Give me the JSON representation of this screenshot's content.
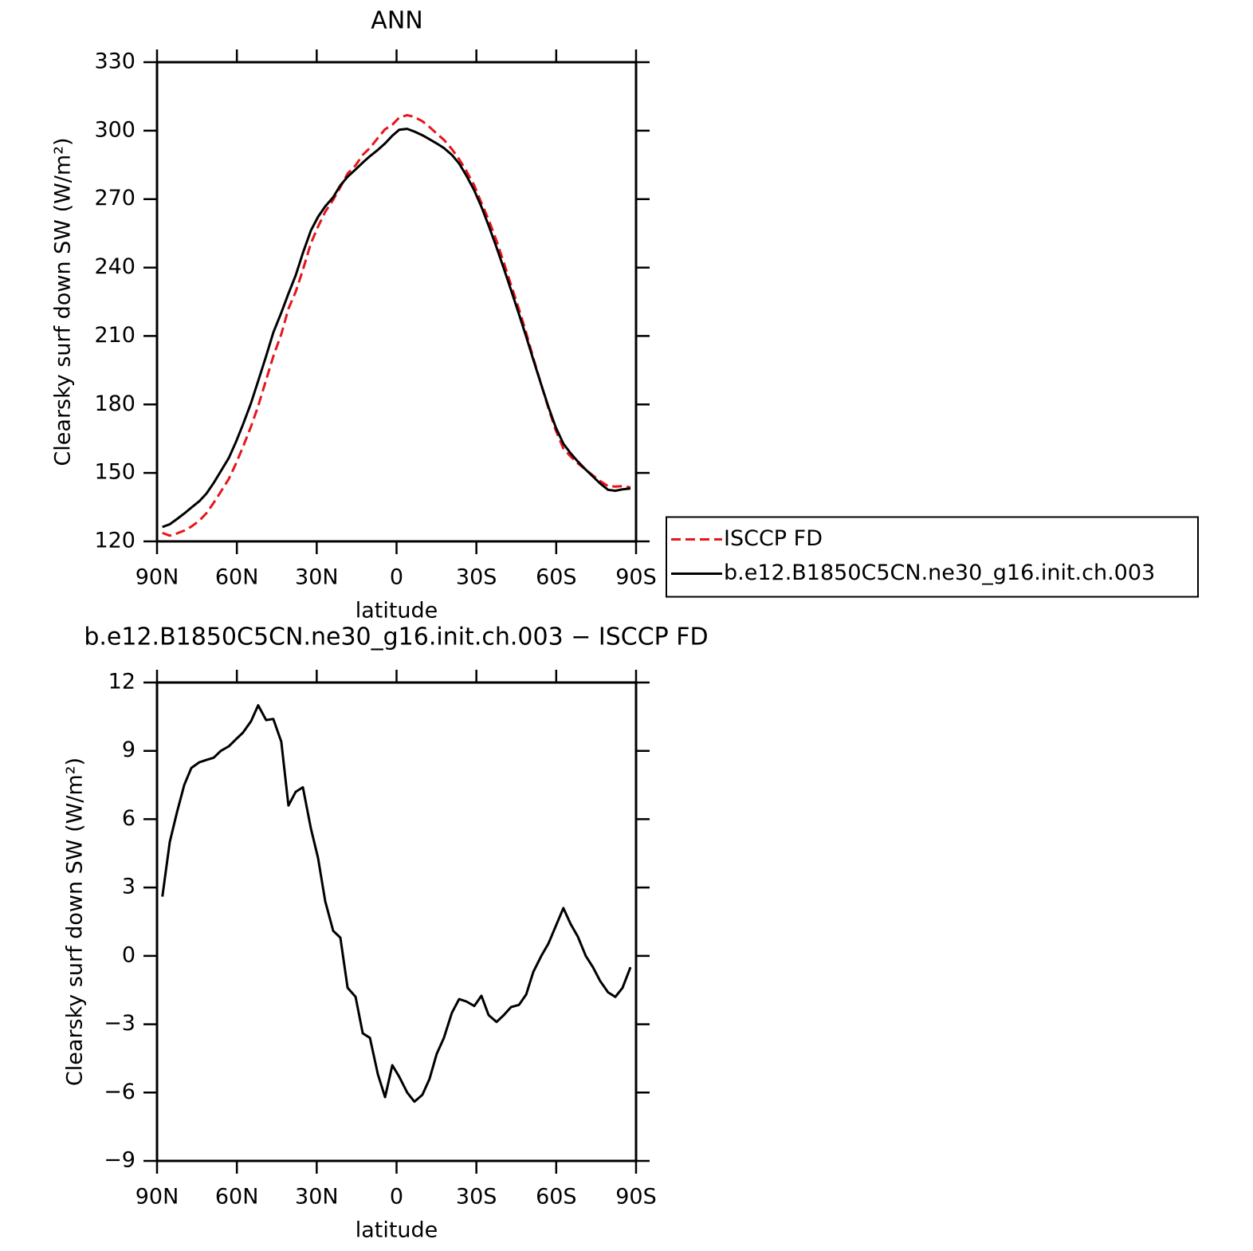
{
  "chart_data": [
    {
      "type": "line",
      "title": "ANN",
      "xlabel": "latitude",
      "ylabel": "Clearsky surf down SW (W/m²)",
      "x": [
        88,
        85.2,
        82.5,
        79.8,
        77.1,
        74.1,
        71.4,
        68.7,
        66.0,
        63.0,
        60.4,
        57.7,
        54.7,
        52.0,
        49.0,
        46.3,
        43.3,
        40.6,
        37.9,
        35.2,
        32.2,
        29.5,
        26.8,
        23.8,
        21.1,
        18.4,
        15.4,
        12.7,
        10.0,
        7.0,
        4.3,
        1.6,
        -1.0,
        -4.0,
        -6.7,
        -9.7,
        -12.4,
        -15.1,
        -17.8,
        -20.8,
        -23.5,
        -26.2,
        -29.2,
        -31.9,
        -34.6,
        -37.6,
        -40.3,
        -43.0,
        -46.0,
        -48.7,
        -51.4,
        -54.4,
        -57.1,
        -59.8,
        -62.7,
        -65.4,
        -68.1,
        -71.1,
        -73.8,
        -76.5,
        -79.5,
        -82.2,
        -84.9,
        -87.9
      ],
      "series": [
        {
          "name": "ISCCP FD",
          "color": "#e8141b",
          "line_style": "dashed",
          "values": [
            123.7,
            122.5,
            123.5,
            124.7,
            126.5,
            129.1,
            132.4,
            136.9,
            141.8,
            147.4,
            153.9,
            161.4,
            170.3,
            179.3,
            190.8,
            201.1,
            210.8,
            222.0,
            229.4,
            239.0,
            250.6,
            257.9,
            264.4,
            269.7,
            275.2,
            281.2,
            284.8,
            289.4,
            292.4,
            296.8,
            300.6,
            302.6,
            305.7,
            306.8,
            306.0,
            304.1,
            301.6,
            298.7,
            296.0,
            291.9,
            287.5,
            282.4,
            276.0,
            268.3,
            261.0,
            251.7,
            242.2,
            232.4,
            221.8,
            211.5,
            200.3,
            188.6,
            178.2,
            168.7,
            160.7,
            157.2,
            154.2,
            151.4,
            148.9,
            146.5,
            144.2,
            144.0,
            144.2,
            143.7
          ]
        },
        {
          "name": "b.e12.B1850C5CN.ne30_g16.init.ch.003",
          "color": "#000000",
          "line_style": "solid",
          "values": [
            126.3,
            127.5,
            129.8,
            132.2,
            134.8,
            137.6,
            141.0,
            145.6,
            150.8,
            156.6,
            163.4,
            171.2,
            180.6,
            190.3,
            201.2,
            211.5,
            220.2,
            228.6,
            236.6,
            246.4,
            256.2,
            262.2,
            266.8,
            270.8,
            276.0,
            279.8,
            283.0,
            286.0,
            288.8,
            291.6,
            294.4,
            297.8,
            300.4,
            300.8,
            299.6,
            298.0,
            296.2,
            294.4,
            292.4,
            289.4,
            285.6,
            280.4,
            273.8,
            266.6,
            258.4,
            248.8,
            239.6,
            230.2,
            219.6,
            209.8,
            199.6,
            188.6,
            178.8,
            170.0,
            162.8,
            158.6,
            155.0,
            151.4,
            148.4,
            145.4,
            142.6,
            142.2,
            142.8,
            143.2
          ]
        }
      ],
      "xlim": [
        90,
        -90
      ],
      "xticks": [
        {
          "value": 90,
          "label": "90N"
        },
        {
          "value": 60,
          "label": "60N"
        },
        {
          "value": 30,
          "label": "30N"
        },
        0,
        {
          "value": -30,
          "label": "30S"
        },
        {
          "value": -60,
          "label": "60S"
        },
        {
          "value": -90,
          "label": "90S"
        }
      ],
      "ylim": [
        120,
        330
      ],
      "yticks": [
        120,
        150,
        180,
        210,
        240,
        270,
        300,
        330
      ],
      "legend": "outside right"
    },
    {
      "type": "line",
      "title": "b.e12.B1850C5CN.ne30_g16.init.ch.003 − ISCCP FD",
      "xlabel": "latitude",
      "ylabel": "Clearsky surf down SW (W/m²)",
      "x": [
        88,
        85.2,
        82.5,
        79.8,
        77.1,
        74.1,
        71.4,
        68.7,
        66.0,
        63.0,
        60.4,
        57.7,
        54.7,
        52.0,
        49.0,
        46.3,
        43.3,
        40.6,
        37.9,
        35.2,
        32.2,
        29.5,
        26.8,
        23.8,
        21.1,
        18.4,
        15.4,
        12.7,
        10.0,
        7.0,
        4.3,
        1.6,
        -1.0,
        -4.0,
        -6.7,
        -9.7,
        -12.4,
        -15.1,
        -17.8,
        -20.8,
        -23.5,
        -26.2,
        -29.2,
        -31.9,
        -34.6,
        -37.6,
        -40.3,
        -43.0,
        -46.0,
        -48.7,
        -51.4,
        -54.4,
        -57.1,
        -59.8,
        -62.7,
        -65.4,
        -68.1,
        -71.1,
        -73.8,
        -76.5,
        -79.5,
        -82.2,
        -84.9,
        -87.9
      ],
      "color": "#000000",
      "values": [
        2.6,
        5.0,
        6.3,
        7.5,
        8.25,
        8.5,
        8.6,
        8.7,
        9.0,
        9.2,
        9.5,
        9.8,
        10.3,
        11.0,
        10.35,
        10.4,
        9.4,
        6.6,
        7.2,
        7.4,
        5.6,
        4.3,
        2.4,
        1.1,
        0.8,
        -1.4,
        -1.8,
        -3.4,
        -3.6,
        -5.2,
        -6.2,
        -4.8,
        -5.3,
        -6.0,
        -6.4,
        -6.1,
        -5.4,
        -4.3,
        -3.6,
        -2.5,
        -1.9,
        -2.0,
        -2.2,
        -1.75,
        -2.6,
        -2.9,
        -2.6,
        -2.25,
        -2.15,
        -1.7,
        -0.7,
        0.0,
        0.55,
        1.3,
        2.1,
        1.4,
        0.85,
        0.0,
        -0.5,
        -1.1,
        -1.6,
        -1.8,
        -1.4,
        -0.5
      ],
      "xlim": [
        90,
        -90
      ],
      "xticks": [
        {
          "value": 90,
          "label": "90N"
        },
        {
          "value": 60,
          "label": "60N"
        },
        {
          "value": 30,
          "label": "30N"
        },
        0,
        {
          "value": -30,
          "label": "30S"
        },
        {
          "value": -60,
          "label": "60S"
        },
        {
          "value": -90,
          "label": "90S"
        }
      ],
      "ylim": [
        -9,
        12
      ],
      "yticks": [
        {
          "value": -9,
          "label": "−9"
        },
        {
          "value": -6,
          "label": "−6"
        },
        {
          "value": -3,
          "label": "−3"
        },
        0,
        3,
        6,
        9,
        12
      ]
    }
  ]
}
